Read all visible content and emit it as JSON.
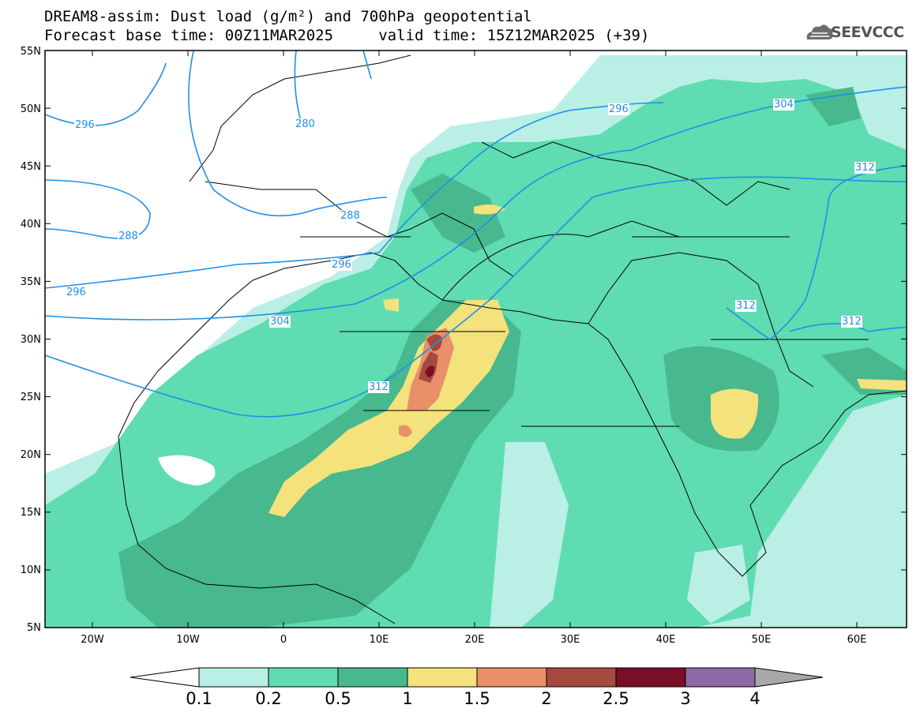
{
  "header": {
    "title_line1": "DREAM8-assim: Dust load (g/m²) and 700hPa geopotential",
    "title_line2": "Forecast base time: 00Z11MAR2025     valid time: 15Z12MAR2025 (+39)"
  },
  "logo": {
    "text": "SEEVCCC",
    "icon": "cloud-logo-icon"
  },
  "map": {
    "lat_labels": [
      "55N",
      "50N",
      "45N",
      "40N",
      "35N",
      "30N",
      "25N",
      "20N",
      "15N",
      "10N",
      "5N"
    ],
    "lon_labels": [
      "20W",
      "10W",
      "0",
      "10E",
      "20E",
      "30E",
      "40E",
      "50E",
      "60E"
    ],
    "contour_labels": [
      "296",
      "280",
      "296",
      "304",
      "288",
      "288",
      "296",
      "296",
      "304",
      "312",
      "312",
      "312",
      "312"
    ],
    "contour_color": "#1e90e8"
  },
  "colorbar": {
    "labels": [
      "0.1",
      "0.2",
      "0.5",
      "1",
      "1.5",
      "2",
      "2.5",
      "3",
      "4"
    ],
    "colors": [
      "#ffffff",
      "#b9efe4",
      "#5fdcb1",
      "#48b88f",
      "#f4e27c",
      "#e9906a",
      "#a44a3e",
      "#780f26",
      "#8d6ba6",
      "#a8a8a8"
    ]
  }
}
